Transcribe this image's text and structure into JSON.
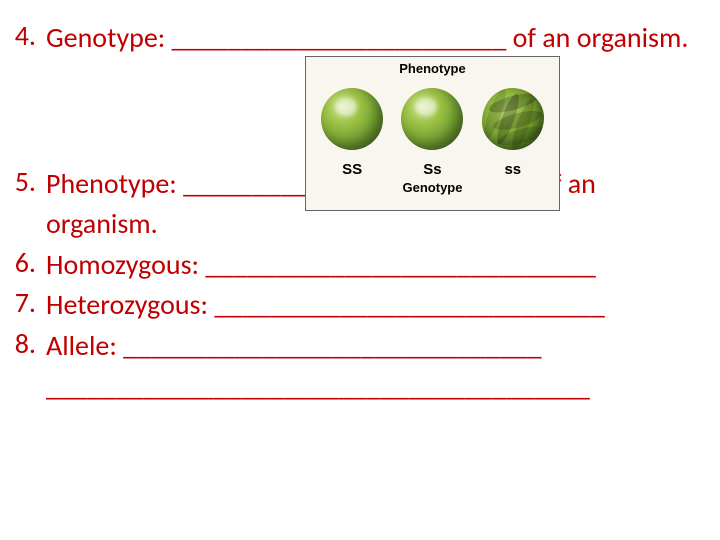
{
  "style": {
    "text_color": "#c00000",
    "font_size_pt": 28,
    "font_family": "Calibri, Arial, sans-serif",
    "figure_label_color": "#000000",
    "figure_bg": "#f8f6ee"
  },
  "items": [
    {
      "num": "4.",
      "text_parts": [
        "Genotype: ",
        "________________________",
        " of an organism."
      ]
    },
    {
      "num": "5.",
      "text_parts": [
        "Phenotype: ",
        "_________________________",
        " of an organism."
      ]
    },
    {
      "num": "6.",
      "text_parts": [
        "Homozygous: ",
        "____________________________"
      ]
    },
    {
      "num": "7.",
      "text_parts": [
        "Heterozygous: ",
        "____________________________"
      ]
    },
    {
      "num": "8.",
      "text_parts": [
        "Allele: ",
        "______________________________",
        " _______________________________________"
      ]
    }
  ],
  "figure": {
    "top_label": "Phenotype",
    "bottom_label": "Genotype",
    "genotypes": [
      "SS",
      "Ss",
      "ss"
    ],
    "pea_color_main": "#8ab33a",
    "pea_highlight": "#d4e89a",
    "pea_shadow": "#4a7020"
  }
}
